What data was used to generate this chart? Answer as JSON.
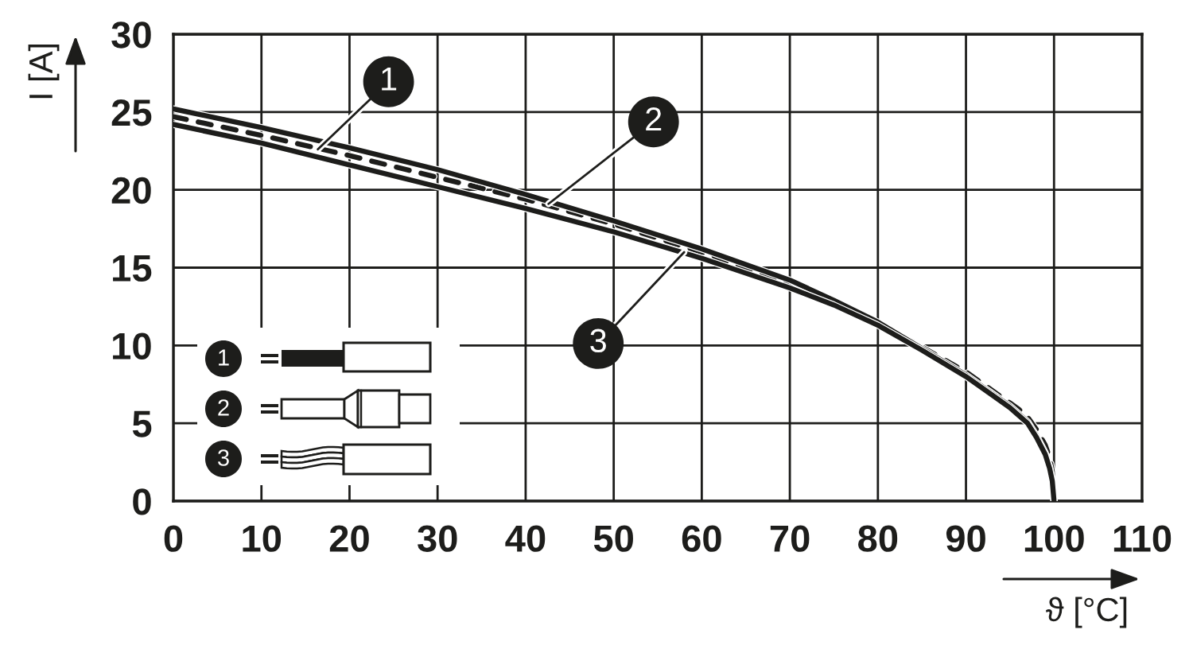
{
  "chart_data": {
    "type": "line",
    "xlabel": "ϑ [°C]",
    "ylabel": "I [A]",
    "x": [
      0,
      10,
      20,
      30,
      40,
      50,
      60,
      70,
      75,
      80,
      85,
      90,
      93,
      95,
      96,
      97,
      98,
      99,
      99.5,
      99.8,
      100
    ],
    "series": [
      {
        "name": "1",
        "color": "#1d1d1b",
        "line_style": "dashed",
        "values": [
          24.7,
          23.5,
          22.2,
          20.8,
          19.4,
          17.8,
          16.0,
          14.0,
          12.8,
          11.4,
          9.9,
          8.3,
          7.1,
          6.3,
          5.9,
          5.4,
          4.6,
          3.6,
          2.8,
          1.9,
          0
        ]
      },
      {
        "name": "2",
        "color": "#1d1d1b",
        "line_style": "solid",
        "values": [
          25.2,
          24.0,
          22.7,
          21.3,
          19.7,
          18.0,
          16.2,
          14.2,
          12.9,
          11.5,
          9.8,
          8.1,
          6.9,
          6.1,
          5.6,
          5.1,
          4.2,
          3.1,
          2.2,
          1.4,
          0
        ]
      },
      {
        "name": "3",
        "color": "#1d1d1b",
        "line_style": "solid",
        "values": [
          24.2,
          23.0,
          21.6,
          20.2,
          18.8,
          17.3,
          15.6,
          13.7,
          12.6,
          11.3,
          9.7,
          8.0,
          6.8,
          6.0,
          5.5,
          5.0,
          4.1,
          3.0,
          2.1,
          1.3,
          0
        ]
      }
    ],
    "xlim": [
      0,
      110
    ],
    "xticks": [
      0,
      10,
      20,
      30,
      40,
      50,
      60,
      70,
      80,
      90,
      100,
      110
    ],
    "ylim": [
      0,
      30
    ],
    "yticks": [
      0,
      5,
      10,
      15,
      20,
      25,
      30
    ],
    "grid": true,
    "legend": "bottom left",
    "annotations": [
      {
        "text": "1",
        "x": 16.4,
        "y": 22.6
      },
      {
        "text": "2",
        "x": 42.6,
        "y": 19.1
      },
      {
        "text": "3",
        "x": 58.0,
        "y": 16.0
      }
    ]
  }
}
